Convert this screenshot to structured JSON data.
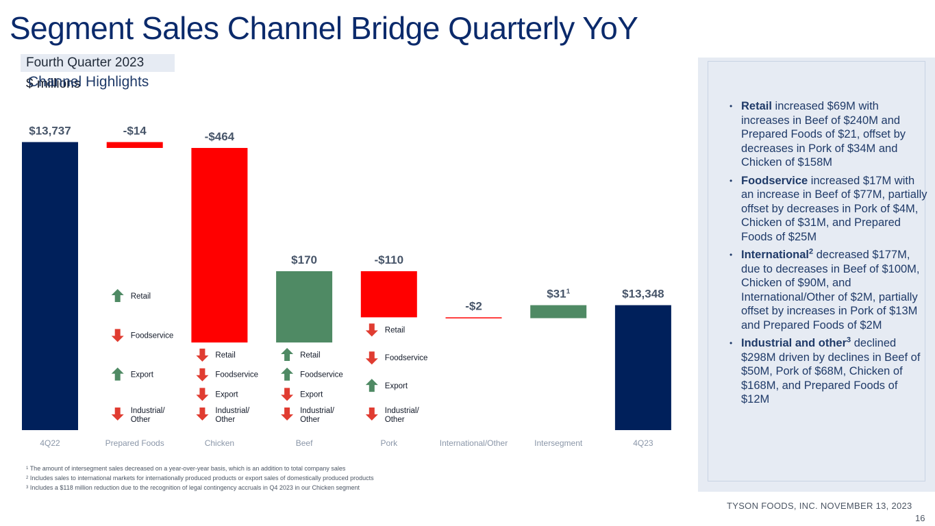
{
  "title": "Segment Sales Channel Bridge Quarterly YoY",
  "period": "Fourth Quarter 2023",
  "units": "$ millions",
  "colors": {
    "total": "#00205b",
    "decrease": "#ff0000",
    "increase": "#4f8a64",
    "arrow_down": "#e03c31",
    "arrow_up": "#4f8a64"
  },
  "chart_data": {
    "type": "bar",
    "subtype": "waterfall",
    "categories": [
      "4Q22",
      "Prepared Foods",
      "Chicken",
      "Beef",
      "Pork",
      "International/Other",
      "Intersegment",
      "4Q23"
    ],
    "values": [
      13737,
      -14,
      -464,
      170,
      -110,
      -2,
      31,
      13348
    ],
    "kinds": [
      "total",
      "delta",
      "delta",
      "delta",
      "delta",
      "delta",
      "delta",
      "total"
    ],
    "data_labels": [
      "$13,737",
      "-$14",
      "-$464",
      "$170",
      "-$110",
      "-$2",
      "$31",
      "$13,348"
    ],
    "label_footnotes": [
      "",
      "",
      "",
      "",
      "",
      "",
      "1",
      ""
    ],
    "ylim": [
      13050,
      13790
    ],
    "grid": false,
    "channel_indicators": [
      null,
      [
        {
          "channel": "Retail",
          "dir": "up"
        },
        {
          "channel": "Foodservice",
          "dir": "down"
        },
        {
          "channel": "Export",
          "dir": "up"
        },
        {
          "channel": "Industrial/ Other",
          "dir": "down"
        }
      ],
      [
        {
          "channel": "Retail",
          "dir": "down"
        },
        {
          "channel": "Foodservice",
          "dir": "down"
        },
        {
          "channel": "Export",
          "dir": "down"
        },
        {
          "channel": "Industrial/ Other",
          "dir": "down"
        }
      ],
      [
        {
          "channel": "Retail",
          "dir": "up"
        },
        {
          "channel": "Foodservice",
          "dir": "up"
        },
        {
          "channel": "Export",
          "dir": "down"
        },
        {
          "channel": "Industrial/ Other",
          "dir": "down"
        }
      ],
      [
        {
          "channel": "Retail",
          "dir": "down"
        },
        {
          "channel": "Foodservice",
          "dir": "down"
        },
        {
          "channel": "Export",
          "dir": "up"
        },
        {
          "channel": "Industrial/ Other",
          "dir": "down"
        }
      ],
      null,
      null,
      null
    ]
  },
  "footnotes": [
    {
      "num": "1",
      "text": "The amount of intersegment sales decreased on a year-over-year basis, which is an addition to total company sales"
    },
    {
      "num": "2",
      "text": "Includes sales to international markets for internationally produced products or export sales of domestically produced products"
    },
    {
      "num": "3",
      "text": "Includes a $118 million reduction due to the recognition of legal contingency accruals in Q4 2023 in our Chicken segment"
    }
  ],
  "highlights": {
    "title": "Channel Highlights",
    "items": [
      {
        "bold": "Retail",
        "sup": "",
        "text": " increased $69M with increases in Beef of $240M and Prepared Foods of $21, offset by decreases in Pork of $34M and Chicken of $158M"
      },
      {
        "bold": "Foodservice",
        "sup": "",
        "text": " increased $17M with an increase in Beef of $77M, partially offset by decreases in Pork of $4M, Chicken of $31M, and Prepared Foods of $25M"
      },
      {
        "bold": "International",
        "sup": "2",
        "text": " decreased $177M, due to decreases in Beef of $100M, Chicken of $90M, and International/Other of $2M, partially offset by increases in Pork of $13M and Prepared Foods of $2M"
      },
      {
        "bold": "Industrial and other",
        "sup": "3",
        "text": " declined $298M driven by declines in Beef of $50M, Pork of $68M, Chicken of $168M, and Prepared Foods of $12M"
      }
    ]
  },
  "footer": "TYSON FOODS, INC. NOVEMBER 13, 2023",
  "page_number": "16"
}
